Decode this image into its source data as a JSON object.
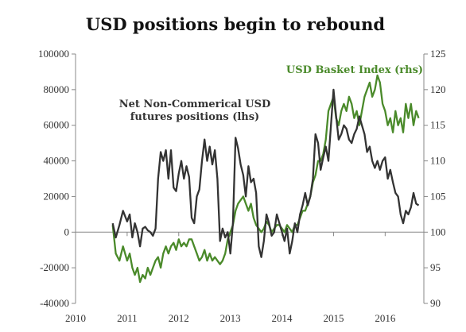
{
  "chart_data": {
    "type": "line",
    "title": "USD positions begin to rebound",
    "xlabel": "",
    "ylabel": "",
    "x_ticks": [
      "2010",
      "2011",
      "2012",
      "2013",
      "2014",
      "2015",
      "2016"
    ],
    "x_range": [
      2010,
      2016.75
    ],
    "y_left": {
      "range": [
        -40000,
        100000
      ],
      "ticks": [
        "-40000",
        "-20000",
        "0",
        "20000",
        "40000",
        "60000",
        "80000",
        "100000"
      ]
    },
    "y_right": {
      "range": [
        90,
        125
      ],
      "ticks": [
        "90",
        "95",
        "100",
        "105",
        "110",
        "115",
        "120",
        "125"
      ]
    },
    "zero_line": true,
    "grid": false,
    "series": [
      {
        "name": "Net Non-Commerical USD futures positions (lhs)",
        "axis": "left",
        "color": "#333333",
        "x": [
          2010.72,
          2010.78,
          2010.85,
          2010.92,
          2011.0,
          2011.05,
          2011.1,
          2011.15,
          2011.2,
          2011.25,
          2011.3,
          2011.35,
          2011.4,
          2011.45,
          2011.5,
          2011.55,
          2011.6,
          2011.65,
          2011.7,
          2011.75,
          2011.8,
          2011.85,
          2011.9,
          2011.95,
          2012.0,
          2012.05,
          2012.1,
          2012.15,
          2012.2,
          2012.25,
          2012.3,
          2012.35,
          2012.4,
          2012.45,
          2012.5,
          2012.55,
          2012.6,
          2012.65,
          2012.7,
          2012.75,
          2012.8,
          2012.85,
          2012.9,
          2012.95,
          2013.0,
          2013.05,
          2013.1,
          2013.15,
          2013.2,
          2013.25,
          2013.3,
          2013.35,
          2013.4,
          2013.45,
          2013.5,
          2013.55,
          2013.6,
          2013.65,
          2013.7,
          2013.75,
          2013.8,
          2013.85,
          2013.9,
          2013.95,
          2014.0,
          2014.05,
          2014.1,
          2014.15,
          2014.2,
          2014.25,
          2014.3,
          2014.35,
          2014.4,
          2014.45,
          2014.5,
          2014.55,
          2014.6,
          2014.65,
          2014.7,
          2014.75,
          2014.8,
          2014.85,
          2014.9,
          2014.95,
          2015.0,
          2015.05,
          2015.1,
          2015.15,
          2015.2,
          2015.25,
          2015.3,
          2015.35,
          2015.4,
          2015.45,
          2015.5,
          2015.55,
          2015.6,
          2015.65,
          2015.7,
          2015.75,
          2015.8,
          2015.85,
          2015.9,
          2015.95,
          2016.0,
          2016.05,
          2016.1,
          2016.15,
          2016.2,
          2016.25,
          2016.3,
          2016.35,
          2016.4,
          2016.45,
          2016.5,
          2016.55,
          2016.6,
          2016.65
        ],
        "values": [
          5000,
          -3000,
          4000,
          12000,
          6000,
          10000,
          -3000,
          5000,
          0,
          -8000,
          2000,
          3000,
          1000,
          0,
          -2000,
          2000,
          30000,
          45000,
          40000,
          46000,
          30000,
          46000,
          25000,
          23000,
          33000,
          40000,
          30000,
          37000,
          31000,
          8000,
          5000,
          20000,
          24000,
          40000,
          52000,
          40000,
          48000,
          38000,
          46000,
          30000,
          -5000,
          2000,
          -3000,
          0,
          -12000,
          5000,
          53000,
          47000,
          38000,
          32000,
          20000,
          37000,
          28000,
          30000,
          22000,
          -8000,
          -14000,
          -5000,
          10000,
          5000,
          -2000,
          0,
          10000,
          5000,
          0,
          -5000,
          2000,
          -12000,
          -5000,
          5000,
          0,
          10000,
          15000,
          22000,
          15000,
          20000,
          30000,
          55000,
          50000,
          35000,
          42000,
          48000,
          40000,
          60000,
          80000,
          65000,
          52000,
          55000,
          60000,
          58000,
          52000,
          50000,
          55000,
          58000,
          65000,
          60000,
          55000,
          45000,
          48000,
          40000,
          36000,
          40000,
          35000,
          40000,
          42000,
          30000,
          35000,
          28000,
          22000,
          20000,
          10000,
          5000,
          12000,
          10000,
          14000,
          22000,
          16000,
          15000
        ]
      },
      {
        "name": "USD Basket Index (rhs)",
        "axis": "right",
        "color": "#4a8a2a",
        "x": [
          2010.72,
          2010.78,
          2010.85,
          2010.92,
          2011.0,
          2011.05,
          2011.1,
          2011.15,
          2011.2,
          2011.25,
          2011.3,
          2011.35,
          2011.4,
          2011.45,
          2011.5,
          2011.55,
          2011.6,
          2011.65,
          2011.7,
          2011.75,
          2011.8,
          2011.85,
          2011.9,
          2011.95,
          2012.0,
          2012.05,
          2012.1,
          2012.15,
          2012.2,
          2012.25,
          2012.3,
          2012.35,
          2012.4,
          2012.45,
          2012.5,
          2012.55,
          2012.6,
          2012.65,
          2012.7,
          2012.75,
          2012.8,
          2012.85,
          2012.9,
          2012.95,
          2013.0,
          2013.05,
          2013.1,
          2013.15,
          2013.2,
          2013.25,
          2013.3,
          2013.35,
          2013.4,
          2013.45,
          2013.5,
          2013.55,
          2013.6,
          2013.65,
          2013.7,
          2013.75,
          2013.8,
          2013.85,
          2013.9,
          2013.95,
          2014.0,
          2014.05,
          2014.1,
          2014.15,
          2014.2,
          2014.25,
          2014.3,
          2014.35,
          2014.4,
          2014.45,
          2014.5,
          2014.55,
          2014.6,
          2014.65,
          2014.7,
          2014.75,
          2014.8,
          2014.85,
          2014.9,
          2014.95,
          2015.0,
          2015.05,
          2015.1,
          2015.15,
          2015.2,
          2015.25,
          2015.3,
          2015.35,
          2015.4,
          2015.45,
          2015.5,
          2015.55,
          2015.6,
          2015.65,
          2015.7,
          2015.75,
          2015.8,
          2015.85,
          2015.9,
          2015.95,
          2016.0,
          2016.05,
          2016.1,
          2016.15,
          2016.2,
          2016.25,
          2016.3,
          2016.35,
          2016.4,
          2016.45,
          2016.5,
          2016.55,
          2016.6,
          2016.65
        ],
        "values": [
          101,
          97,
          96,
          98,
          96,
          97,
          95,
          94,
          95,
          93,
          94,
          93.5,
          95,
          94,
          95,
          96,
          96.5,
          95,
          97,
          98,
          97,
          98,
          98.5,
          97.5,
          99,
          98,
          98.5,
          98,
          99,
          99,
          98,
          97,
          96,
          96.5,
          97.5,
          96,
          97,
          96,
          96.5,
          96,
          95.5,
          96,
          97,
          99,
          100,
          101,
          103,
          104,
          104.5,
          105,
          104,
          103,
          104,
          102,
          101,
          100.5,
          100,
          100.5,
          101.5,
          101,
          100,
          100.5,
          101,
          101,
          100.5,
          100,
          101,
          100.5,
          100,
          101,
          101,
          102,
          103,
          103,
          104,
          105,
          107,
          108,
          110,
          110,
          111,
          113,
          117,
          118,
          119,
          116,
          115,
          117,
          118,
          117,
          119,
          118,
          116,
          117,
          115,
          117,
          119,
          120,
          121,
          119,
          120,
          122,
          121,
          118,
          117,
          115,
          116,
          114,
          117,
          115,
          116,
          114,
          118,
          116,
          118,
          115,
          117,
          116
        ]
      }
    ],
    "annotations": [
      {
        "text_lines": [
          "Net Non-Commerical USD",
          "futures positions (lhs)"
        ],
        "color": "#333333"
      },
      {
        "text_lines": [
          "USD Basket Index (rhs)"
        ],
        "color": "#4a8a2a"
      }
    ]
  }
}
